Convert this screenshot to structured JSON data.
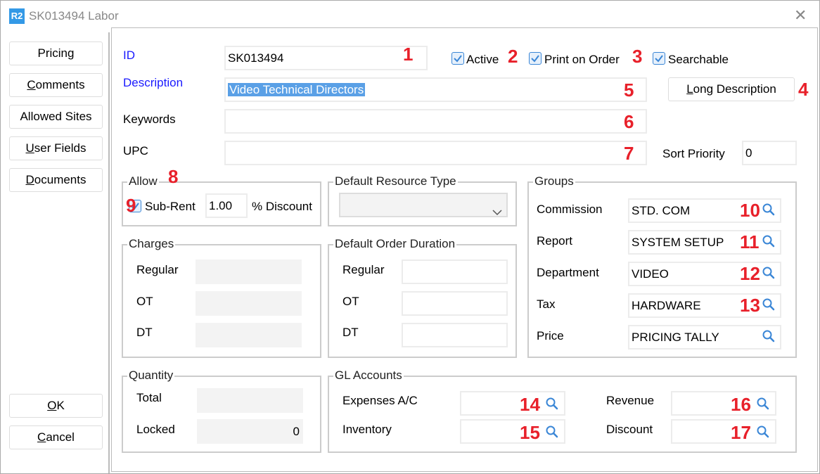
{
  "window": {
    "title": "SK013494 Labor",
    "logo": "R2",
    "close_icon": "close-icon"
  },
  "sidebar": {
    "buttons": [
      {
        "label": "Pricing",
        "u": "g"
      },
      {
        "label": "Comments",
        "u": "C"
      },
      {
        "label": "Allowed Sites",
        "u": ""
      },
      {
        "label": "User Fields",
        "u": "U"
      },
      {
        "label": "Documents",
        "u": "D"
      }
    ],
    "ok": "OK",
    "cancel": "Cancel"
  },
  "form": {
    "id_label": "ID",
    "id_value": "SK013494",
    "active_label": "Active",
    "active": true,
    "print_label": "Print on Order",
    "print": true,
    "searchable_label": "Searchable",
    "searchable": true,
    "description_label": "Description",
    "description_value": "Video Technical Directors",
    "long_description": "Long Description",
    "keywords_label": "Keywords",
    "keywords_value": "",
    "upc_label": "UPC",
    "upc_value": "",
    "sort_priority_label": "Sort Priority",
    "sort_priority_value": "0"
  },
  "allow": {
    "title": "Allow",
    "subrent_label": "Sub-Rent",
    "subrent": true,
    "discount_value": "1.00",
    "discount_label": "% Discount"
  },
  "default_resource_type": {
    "title": "Default Resource Type",
    "value": ""
  },
  "charges": {
    "title": "Charges",
    "rows": [
      {
        "label": "Regular",
        "value": ""
      },
      {
        "label": "OT",
        "value": ""
      },
      {
        "label": "DT",
        "value": ""
      }
    ]
  },
  "default_order_duration": {
    "title": "Default Order Duration",
    "rows": [
      {
        "label": "Regular",
        "value": ""
      },
      {
        "label": "OT",
        "value": ""
      },
      {
        "label": "DT",
        "value": ""
      }
    ]
  },
  "groups": {
    "title": "Groups",
    "rows": [
      {
        "label": "Commission",
        "value": "STD. COM"
      },
      {
        "label": "Report",
        "value": "SYSTEM SETUP"
      },
      {
        "label": "Department",
        "value": "VIDEO"
      },
      {
        "label": "Tax",
        "value": "HARDWARE"
      },
      {
        "label": "Price",
        "value": "PRICING TALLY"
      }
    ]
  },
  "quantity": {
    "title": "Quantity",
    "total_label": "Total",
    "total_value": "",
    "locked_label": "Locked",
    "locked_value": "0"
  },
  "gl_accounts": {
    "title": "GL Accounts",
    "expenses_label": "Expenses A/C",
    "inventory_label": "Inventory",
    "revenue_label": "Revenue",
    "discount_label": "Discount",
    "expenses_value": "",
    "inventory_value": "",
    "revenue_value": "",
    "discount_value": ""
  },
  "annotations": [
    "1",
    "2",
    "3",
    "4",
    "5",
    "6",
    "7",
    "8",
    "9",
    "10",
    "11",
    "12",
    "13",
    "14",
    "15",
    "16",
    "17"
  ],
  "colors": {
    "accent": "#3a86d6",
    "label_blue": "#1a1aff",
    "annotation_red": "#e8202a",
    "selection": "#5aa0e6"
  }
}
